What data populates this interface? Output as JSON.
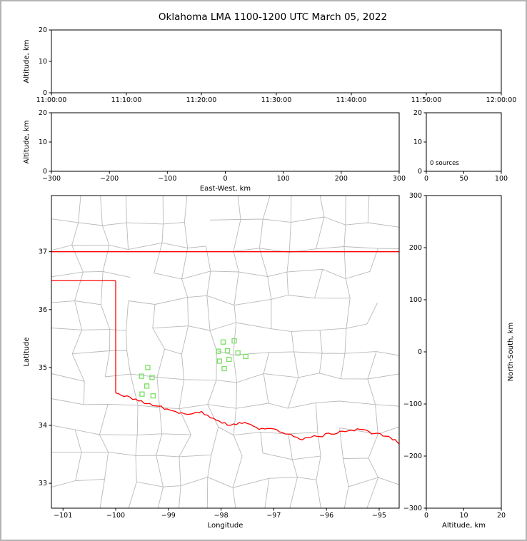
{
  "title": "Oklahoma LMA 1100-1200 UTC March 05, 2022",
  "colors": {
    "axis": "#000000",
    "county_lines": "#b9b9b9",
    "state_border": "#ff0000",
    "station_marker": "#78e060",
    "frame_border": "#b4b4b4",
    "background": "#ffffff"
  },
  "chart_data": [
    {
      "id": "time-height",
      "type": "scatter",
      "description": "VHF source altitude vs time; no sources plotted",
      "xlim": [
        0,
        3600
      ],
      "xticks": [
        {
          "v": 0,
          "label": "11:00:00"
        },
        {
          "v": 600,
          "label": "11:10:00"
        },
        {
          "v": 1200,
          "label": "11:20:00"
        },
        {
          "v": 1800,
          "label": "11:30:00"
        },
        {
          "v": 2400,
          "label": "11:40:00"
        },
        {
          "v": 3000,
          "label": "11:50:00"
        },
        {
          "v": 3600,
          "label": "12:00:00"
        }
      ],
      "ylim": [
        0,
        20
      ],
      "yticks": [
        {
          "v": 0,
          "label": "0"
        },
        {
          "v": 10,
          "label": "10"
        },
        {
          "v": 20,
          "label": "20"
        }
      ],
      "ylabel": "Altitude, km",
      "points": []
    },
    {
      "id": "ew-height",
      "type": "scatter",
      "description": "Altitude vs East-West distance; no sources plotted",
      "xlim": [
        -300,
        300
      ],
      "xticks": [
        {
          "v": -300,
          "label": "−300"
        },
        {
          "v": -200,
          "label": "−200"
        },
        {
          "v": -100,
          "label": "−100"
        },
        {
          "v": 0,
          "label": "0"
        },
        {
          "v": 100,
          "label": "100"
        },
        {
          "v": 200,
          "label": "200"
        },
        {
          "v": 300,
          "label": "300"
        }
      ],
      "xlabel": "East-West, km",
      "ylim": [
        0,
        20
      ],
      "yticks": [
        {
          "v": 0,
          "label": "0"
        },
        {
          "v": 10,
          "label": "10"
        },
        {
          "v": 20,
          "label": "20"
        }
      ],
      "ylabel": "Altitude, km",
      "points": []
    },
    {
      "id": "altitude-histogram",
      "type": "bar",
      "description": "Source count vs altitude histogram",
      "annotation": "0 sources",
      "source_count": 0,
      "xlim": [
        0,
        100
      ],
      "xticks": [
        {
          "v": 0,
          "label": "0"
        },
        {
          "v": 50,
          "label": "50"
        },
        {
          "v": 100,
          "label": "100"
        }
      ],
      "ylim": [
        0,
        20
      ],
      "yticks": [
        {
          "v": 0,
          "label": "0"
        },
        {
          "v": 10,
          "label": "10"
        },
        {
          "v": 20,
          "label": "20"
        }
      ],
      "values": []
    },
    {
      "id": "plan-view",
      "type": "scatter",
      "description": "Plan view map of Oklahoma with county lines, state border and LMA stations",
      "xlabel": "Longitude",
      "ylabel": "Latitude",
      "xlim": [
        -101.22,
        -94.62
      ],
      "xticks": [
        {
          "v": -101,
          "label": "−101"
        },
        {
          "v": -100,
          "label": "−100"
        },
        {
          "v": -99,
          "label": "−99"
        },
        {
          "v": -98,
          "label": "−98"
        },
        {
          "v": -97,
          "label": "−97"
        },
        {
          "v": -96,
          "label": "−96"
        },
        {
          "v": -95,
          "label": "−95"
        }
      ],
      "ylim": [
        32.57,
        37.97
      ],
      "yticks": [
        {
          "v": 33,
          "label": "33"
        },
        {
          "v": 34,
          "label": "34"
        },
        {
          "v": 35,
          "label": "35"
        },
        {
          "v": 36,
          "label": "36"
        },
        {
          "v": 37,
          "label": "37"
        }
      ],
      "stations": [
        [
          -99.39,
          35.0
        ],
        [
          -99.51,
          34.85
        ],
        [
          -99.31,
          34.83
        ],
        [
          -99.41,
          34.68
        ],
        [
          -99.5,
          34.54
        ],
        [
          -99.29,
          34.51
        ],
        [
          -97.96,
          35.44
        ],
        [
          -97.75,
          35.46
        ],
        [
          -98.05,
          35.28
        ],
        [
          -97.88,
          35.29
        ],
        [
          -97.68,
          35.25
        ],
        [
          -97.53,
          35.19
        ],
        [
          -98.03,
          35.11
        ],
        [
          -97.85,
          35.14
        ],
        [
          -97.94,
          34.98
        ]
      ],
      "state_border": {
        "kansas_border_lat": 37.0,
        "panhandle_south_lat": 36.5,
        "texas_border_lon": -100.0,
        "west_corner_lat": 34.56,
        "red_river": [
          [
            -100.0,
            34.56
          ],
          [
            -99.73,
            34.49
          ],
          [
            -99.46,
            34.38
          ],
          [
            -99.19,
            34.33
          ],
          [
            -98.91,
            34.25
          ],
          [
            -98.64,
            34.19
          ],
          [
            -98.37,
            34.24
          ],
          [
            -98.09,
            34.09
          ],
          [
            -97.82,
            34.0
          ],
          [
            -97.55,
            34.05
          ],
          [
            -97.28,
            33.93
          ],
          [
            -97.0,
            33.94
          ],
          [
            -96.73,
            33.85
          ],
          [
            -96.46,
            33.75
          ],
          [
            -96.18,
            33.81
          ],
          [
            -95.91,
            33.85
          ],
          [
            -95.64,
            33.89
          ],
          [
            -95.36,
            33.93
          ],
          [
            -95.09,
            33.86
          ],
          [
            -94.82,
            33.81
          ],
          [
            -94.62,
            33.68
          ]
        ]
      }
    },
    {
      "id": "ns-height",
      "type": "scatter",
      "description": "North-South distance vs altitude; no sources plotted",
      "xlabel": "Altitude, km",
      "ylabel_right": "North-South, km",
      "xlim": [
        0,
        20
      ],
      "xticks": [
        {
          "v": 0,
          "label": "0"
        },
        {
          "v": 10,
          "label": "10"
        },
        {
          "v": 20,
          "label": "20"
        }
      ],
      "ylim": [
        -300,
        300
      ],
      "yticks": [
        {
          "v": 300,
          "label": "300"
        },
        {
          "v": 200,
          "label": "200"
        },
        {
          "v": 100,
          "label": "100"
        },
        {
          "v": 0,
          "label": "0"
        },
        {
          "v": -100,
          "label": "−100"
        },
        {
          "v": -200,
          "label": "−200"
        },
        {
          "v": -300,
          "label": "−300"
        }
      ],
      "points": []
    }
  ]
}
